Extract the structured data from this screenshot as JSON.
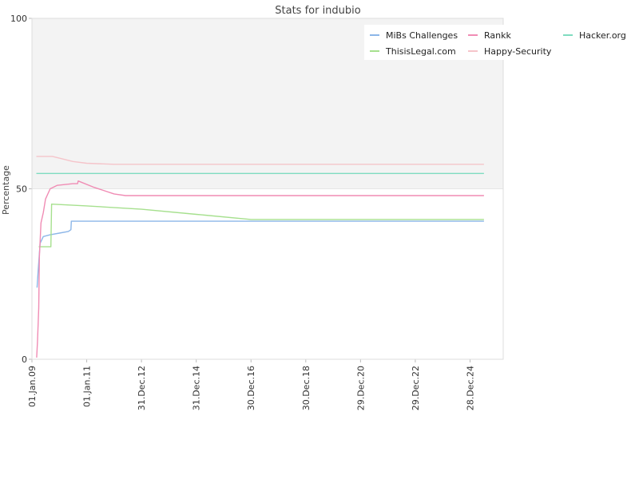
{
  "chart_data": {
    "type": "line",
    "title": "Stats for indubio",
    "xlabel": "",
    "ylabel": "Percentage",
    "ylim": [
      0,
      100
    ],
    "yticks": [
      0,
      50,
      100
    ],
    "xlim": [
      "2009-01-01",
      "2026-03-15"
    ],
    "xticks": [
      {
        "date": "2009-01-01",
        "label": "01.Jan.09"
      },
      {
        "date": "2011-01-01",
        "label": "01.Jan.11"
      },
      {
        "date": "2012-12-31",
        "label": "31.Dec.12"
      },
      {
        "date": "2014-12-31",
        "label": "31.Dec.14"
      },
      {
        "date": "2016-12-30",
        "label": "30.Dec.16"
      },
      {
        "date": "2018-12-30",
        "label": "30.Dec.18"
      },
      {
        "date": "2020-12-29",
        "label": "29.Dec.20"
      },
      {
        "date": "2022-12-29",
        "label": "29.Dec.22"
      },
      {
        "date": "2024-12-28",
        "label": "28.Dec.24"
      }
    ],
    "background_band": {
      "from": 50,
      "to": 100,
      "color": "#f3f3f3"
    },
    "legend_placement": "top-right",
    "series": [
      {
        "name": "MiBs Challenges",
        "color": "#8cb6e8",
        "points": [
          [
            "2009-03-10",
            21
          ],
          [
            "2009-03-25",
            26
          ],
          [
            "2009-04-20",
            34
          ],
          [
            "2009-06-01",
            36
          ],
          [
            "2009-09-01",
            36.5
          ],
          [
            "2010-01-01",
            37
          ],
          [
            "2010-05-01",
            37.5
          ],
          [
            "2010-06-05",
            38
          ],
          [
            "2010-06-10",
            40.5
          ],
          [
            "2013-01-01",
            40.5
          ],
          [
            "2025-07-01",
            40.5
          ]
        ]
      },
      {
        "name": "ThisisLegal.com",
        "color": "#a6e08e",
        "points": [
          [
            "2009-04-01",
            33
          ],
          [
            "2009-09-10",
            33
          ],
          [
            "2009-09-20",
            45.5
          ],
          [
            "2011-01-01",
            45
          ],
          [
            "2013-01-01",
            44
          ],
          [
            "2015-01-01",
            42.5
          ],
          [
            "2017-01-01",
            41
          ],
          [
            "2025-07-01",
            41
          ]
        ]
      },
      {
        "name": "Rankk",
        "color": "#f08cb4",
        "points": [
          [
            "2009-03-05",
            0.5
          ],
          [
            "2009-03-15",
            5
          ],
          [
            "2009-04-01",
            15
          ],
          [
            "2009-04-10",
            30
          ],
          [
            "2009-05-01",
            40
          ],
          [
            "2009-06-01",
            43
          ],
          [
            "2009-07-01",
            47
          ],
          [
            "2009-09-01",
            50
          ],
          [
            "2009-12-01",
            51
          ],
          [
            "2010-07-01",
            51.5
          ],
          [
            "2010-09-01",
            51.5
          ],
          [
            "2010-09-10",
            52.3
          ],
          [
            "2011-04-01",
            50.5
          ],
          [
            "2012-01-01",
            48.5
          ],
          [
            "2012-06-01",
            48
          ],
          [
            "2025-07-01",
            48
          ]
        ]
      },
      {
        "name": "Happy-Security",
        "color": "#f5c4ca",
        "points": [
          [
            "2009-03-01",
            59.5
          ],
          [
            "2009-05-01",
            59.5
          ],
          [
            "2009-10-01",
            59.5
          ],
          [
            "2010-01-01",
            59
          ],
          [
            "2010-07-01",
            58
          ],
          [
            "2011-01-01",
            57.5
          ],
          [
            "2012-01-01",
            57.2
          ],
          [
            "2025-07-01",
            57.2
          ]
        ]
      },
      {
        "name": "Hacker.org",
        "color": "#7fdcc0",
        "points": [
          [
            "2009-03-01",
            54.5
          ],
          [
            "2025-07-01",
            54.5
          ]
        ]
      }
    ]
  }
}
